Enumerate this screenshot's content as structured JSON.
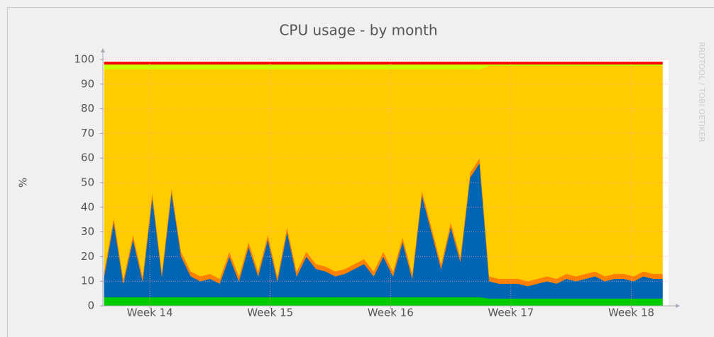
{
  "chart_data": {
    "type": "stacked_area",
    "title": "CPU usage - by month",
    "ylabel": "%",
    "side_label": "RRDTOOL / TOBI OETIKER",
    "x": [
      13.62,
      13.7,
      13.78,
      13.86,
      13.94,
      14.02,
      14.1,
      14.18,
      14.26,
      14.34,
      14.42,
      14.5,
      14.58,
      14.66,
      14.74,
      14.82,
      14.9,
      14.98,
      15.06,
      15.14,
      15.22,
      15.3,
      15.38,
      15.46,
      15.54,
      15.62,
      15.7,
      15.78,
      15.86,
      15.94,
      16.02,
      16.1,
      16.18,
      16.26,
      16.34,
      16.42,
      16.5,
      16.58,
      16.66,
      16.74,
      16.82,
      16.9,
      16.98,
      17.06,
      17.14,
      17.22,
      17.3,
      17.38,
      17.46,
      17.54,
      17.62,
      17.7,
      17.78,
      17.86,
      17.94,
      18.02,
      18.1,
      18.18,
      18.26
    ],
    "xlim": [
      13.61,
      18.31
    ],
    "xticks": [
      {
        "value": 14,
        "label": "Week 14"
      },
      {
        "value": 15,
        "label": "Week 15"
      },
      {
        "value": 16,
        "label": "Week 16"
      },
      {
        "value": 17,
        "label": "Week 17"
      },
      {
        "value": 18,
        "label": "Week 18"
      }
    ],
    "ylim": [
      0,
      100
    ],
    "yticks": [
      0,
      10,
      20,
      30,
      40,
      50,
      60,
      70,
      80,
      90,
      100
    ],
    "grid": true,
    "series": [
      {
        "color": "#00cc00",
        "values": [
          3.5,
          3.5,
          3.5,
          3.5,
          3.5,
          3.5,
          3.5,
          3.5,
          3.5,
          3.5,
          3.5,
          3.5,
          3.5,
          3.5,
          3.5,
          3.5,
          3.5,
          3.5,
          3.5,
          3.5,
          3.5,
          3.5,
          3.5,
          3.5,
          3.5,
          3.5,
          3.5,
          3.5,
          3.5,
          3.5,
          3.5,
          3.5,
          3.5,
          3.5,
          3.5,
          3.5,
          3.5,
          3.5,
          3.5,
          3.5,
          3,
          3,
          3,
          3,
          3,
          3,
          3,
          3,
          3,
          3,
          3,
          3,
          3,
          3,
          3,
          3,
          3,
          3,
          3
        ]
      },
      {
        "color": "#0066b3",
        "values": [
          8.5,
          30.5,
          5.5,
          23.5,
          6.5,
          40.5,
          8.5,
          42.5,
          16.5,
          8.5,
          6.5,
          7.5,
          5.5,
          16.5,
          6.5,
          20.5,
          8.5,
          23.5,
          6.5,
          26.5,
          8.5,
          16.5,
          11.5,
          10.5,
          8.5,
          9.5,
          11.5,
          13.5,
          8.5,
          16.5,
          8.5,
          22.5,
          7.5,
          41.5,
          26.5,
          11.5,
          28.5,
          14.5,
          48.5,
          54.5,
          7,
          6,
          6,
          6,
          5,
          6,
          7,
          6,
          8,
          7,
          8,
          9,
          7,
          8,
          8,
          7,
          9,
          8,
          8
        ]
      },
      {
        "color": "#ff8000",
        "values": [
          2,
          2,
          2,
          2,
          2,
          2,
          2,
          2,
          2,
          2,
          2,
          2,
          2,
          2,
          2,
          2,
          2,
          2,
          2,
          2,
          2,
          2,
          2,
          2,
          2,
          2,
          2,
          2,
          2,
          2,
          2,
          2,
          2,
          2,
          2,
          2,
          2,
          2,
          2,
          2,
          2,
          2,
          2,
          2,
          2,
          2,
          2,
          2,
          2,
          2,
          2,
          2,
          2,
          2,
          2,
          2,
          2,
          2,
          2
        ]
      },
      {
        "color": "#ffcc00",
        "values": [
          82,
          60,
          85,
          67,
          84,
          50,
          82,
          48,
          74,
          82,
          84,
          83,
          85,
          74,
          84,
          70,
          82,
          67,
          84,
          64,
          82,
          74,
          79,
          80,
          82,
          81,
          79,
          77,
          82,
          74,
          82,
          68,
          83,
          49,
          64,
          79,
          62,
          76,
          42,
          36,
          85.5,
          86.5,
          86.5,
          86.5,
          87.5,
          86.5,
          85.5,
          86.5,
          84.5,
          85.5,
          84.5,
          83.5,
          85.5,
          84.5,
          84.5,
          85.5,
          83.5,
          84.5,
          84.5
        ]
      },
      {
        "color": "#ccff00",
        "values": [
          2,
          2,
          2,
          2,
          2,
          2,
          2,
          2,
          2,
          2,
          2,
          2,
          2,
          2,
          2,
          2,
          2,
          2,
          2,
          2,
          2,
          2,
          2,
          2,
          2,
          2,
          2,
          2,
          2,
          2,
          2,
          2,
          2,
          2,
          2,
          2,
          2,
          2,
          2,
          2,
          0.5,
          0.5,
          0.5,
          0.5,
          0.5,
          0.5,
          0.5,
          0.5,
          0.5,
          0.5,
          0.5,
          0.5,
          0.5,
          0.5,
          0.5,
          0.5,
          0.5,
          0.5,
          0.5
        ]
      },
      {
        "color": "#ff0000",
        "values": [
          1,
          1,
          1,
          1,
          1,
          1,
          1,
          1,
          1,
          1,
          1,
          1,
          1,
          1,
          1,
          1,
          1,
          1,
          1,
          1,
          1,
          1,
          1,
          1,
          1,
          1,
          1,
          1,
          1,
          1,
          1,
          1,
          1,
          1,
          1,
          1,
          1,
          1,
          1,
          1,
          1,
          1,
          1,
          1,
          1,
          1,
          1,
          1,
          1,
          1,
          1,
          1,
          1,
          1,
          1,
          1,
          1,
          1,
          1
        ]
      }
    ]
  }
}
